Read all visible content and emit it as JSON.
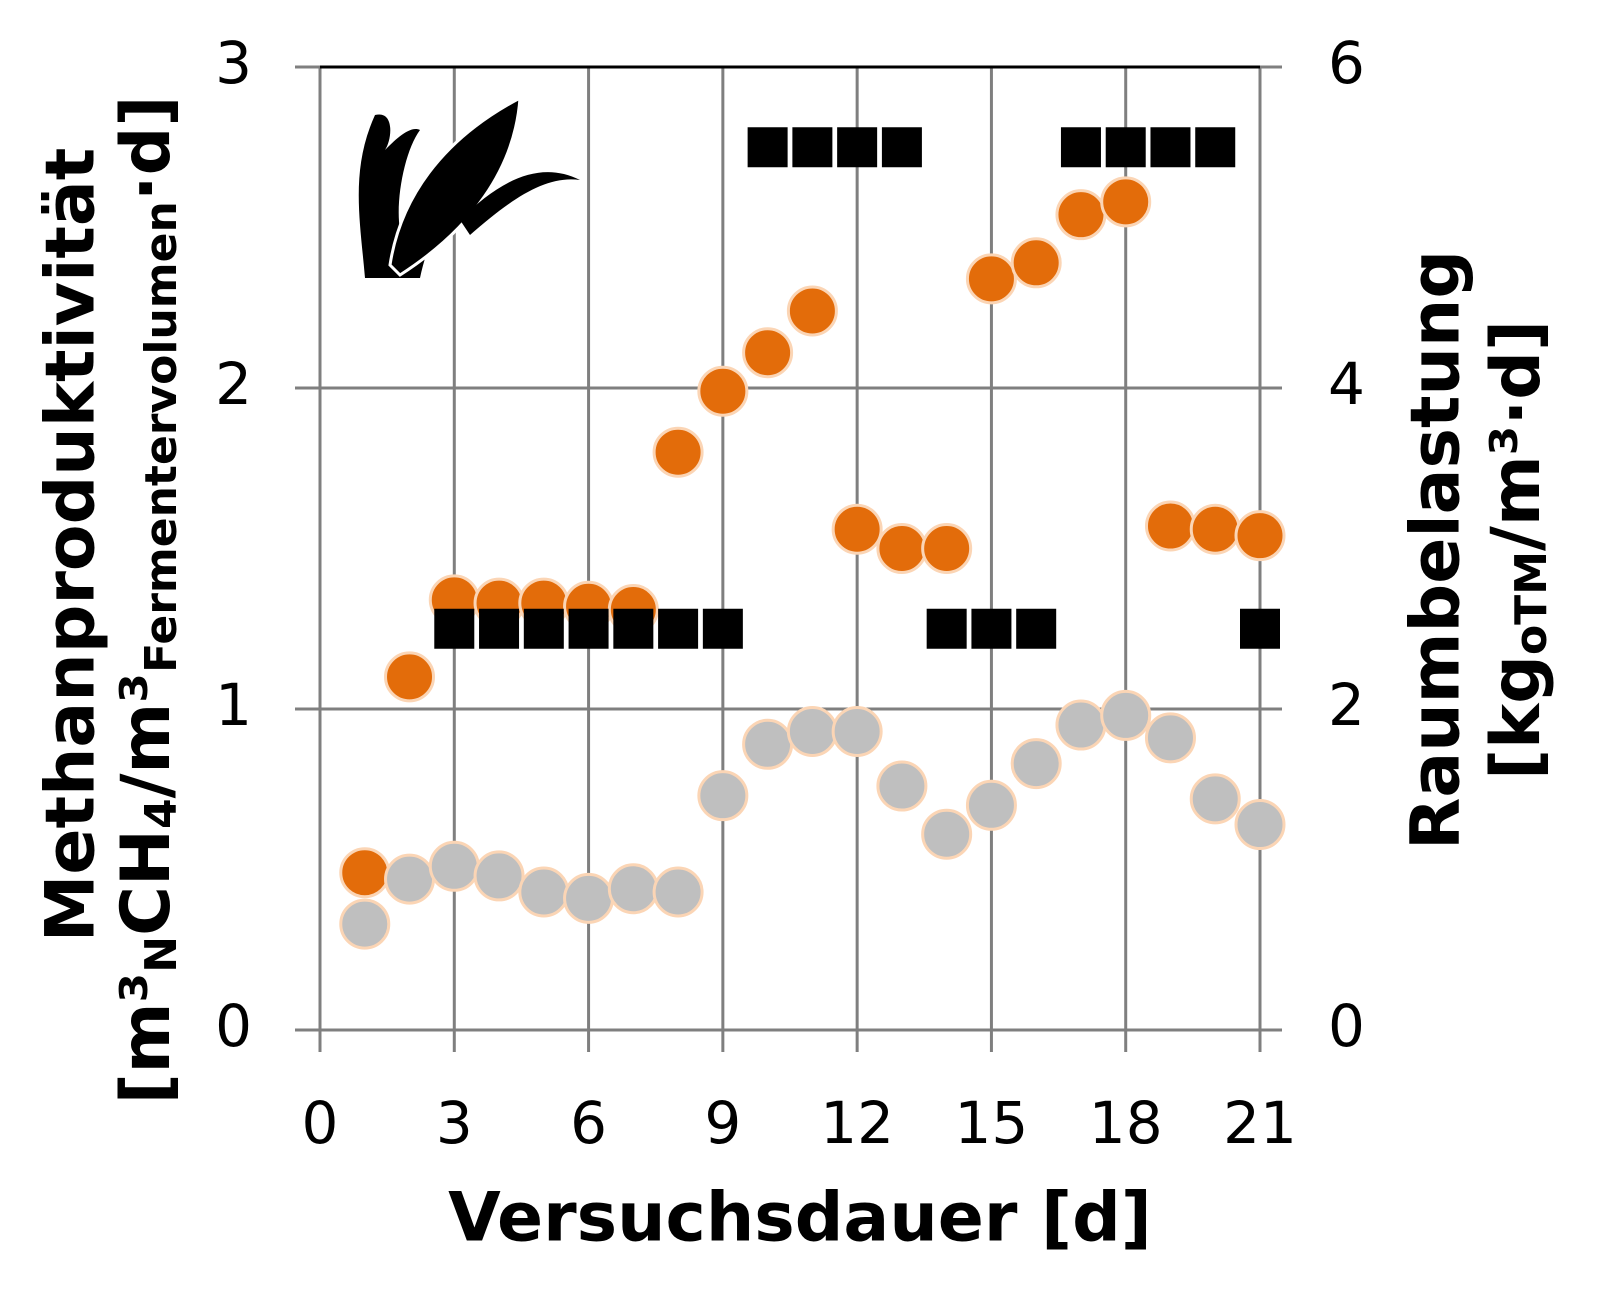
{
  "chart_data": {
    "type": "scatter",
    "xlabel": "Versuchsdauer [d]",
    "ylabel": [
      "Methanproduktivität",
      [
        {
          "text": "[m³"
        },
        {
          "text": "N",
          "sub": true
        },
        {
          "text": "CH"
        },
        {
          "text": "4",
          "sub": true
        },
        {
          "text": "/m³"
        },
        {
          "text": "Fermentervolumen",
          "sub": true
        },
        {
          "text": "·d]"
        }
      ]
    ],
    "y2label": [
      "Raumbelastung",
      [
        {
          "text": "[kg"
        },
        {
          "text": "oTM",
          "sub": true
        },
        {
          "text": "/m³·d]"
        }
      ]
    ],
    "xlim": [
      0,
      21
    ],
    "xticks": [
      0,
      3,
      6,
      9,
      12,
      15,
      18,
      21
    ],
    "ylim": [
      0,
      3
    ],
    "yticks": [
      0,
      1,
      2,
      3
    ],
    "y2lim": [
      0,
      6
    ],
    "y2ticks": [
      0,
      2,
      4,
      6
    ],
    "grid": true,
    "series": [
      {
        "color": "#e36c0a",
        "marker": "circle",
        "axis": "y",
        "x": [
          1,
          2,
          3,
          4,
          5,
          6,
          7,
          8,
          9,
          10,
          11,
          12,
          13,
          14,
          15,
          16,
          17,
          18,
          19,
          20,
          21
        ],
        "values": [
          0.49,
          1.1,
          1.34,
          1.33,
          1.33,
          1.32,
          1.31,
          1.8,
          1.99,
          2.11,
          2.24,
          1.56,
          1.5,
          1.5,
          2.34,
          2.39,
          2.54,
          2.58,
          1.57,
          1.56,
          1.54
        ]
      },
      {
        "color": "#bfbfbf",
        "marker": "circle",
        "axis": "y",
        "x": [
          1,
          2,
          3,
          4,
          5,
          6,
          7,
          8,
          9,
          10,
          11,
          12,
          13,
          14,
          15,
          16,
          17,
          18,
          19,
          20,
          21
        ],
        "values": [
          0.33,
          0.47,
          0.51,
          0.48,
          0.43,
          0.41,
          0.44,
          0.43,
          0.73,
          0.89,
          0.93,
          0.93,
          0.76,
          0.61,
          0.7,
          0.83,
          0.95,
          0.98,
          0.91,
          0.72,
          0.64
        ]
      },
      {
        "color": "#000000",
        "marker": "square",
        "axis": "y2",
        "x": [
          3,
          4,
          5,
          6,
          7,
          8,
          9,
          10,
          11,
          12,
          13,
          14,
          15,
          16,
          17,
          18,
          19,
          20,
          21
        ],
        "values": [
          2.5,
          2.5,
          2.5,
          2.5,
          2.5,
          2.5,
          2.5,
          5.5,
          5.5,
          5.5,
          5.5,
          2.5,
          2.5,
          2.5,
          5.5,
          5.5,
          5.5,
          5.5,
          2.5
        ]
      }
    ]
  }
}
